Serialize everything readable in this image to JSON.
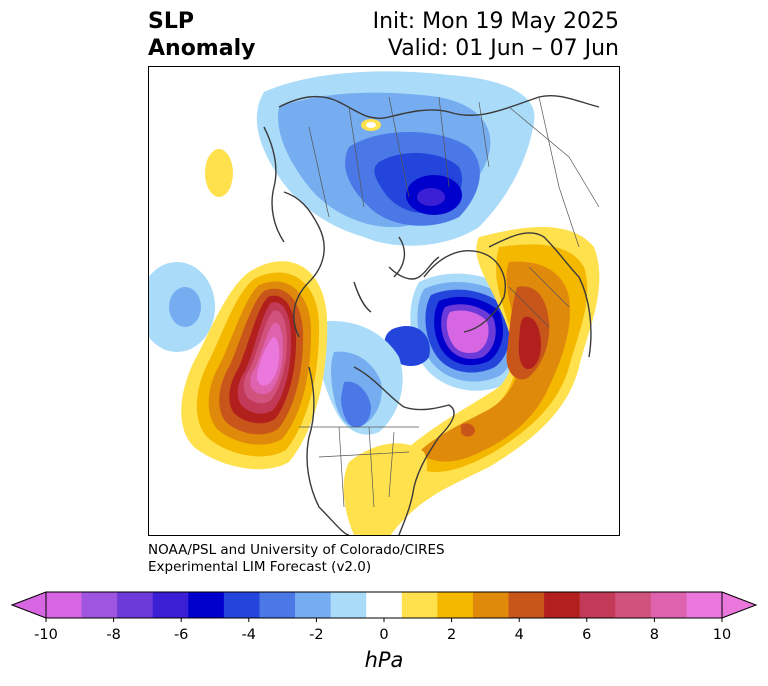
{
  "header": {
    "title_line1": "SLP",
    "title_line2": "Anomaly",
    "init_text": "Init: Mon 19 May 2025",
    "valid_text": "Valid: 01 Jun – 07 Jun"
  },
  "credit": {
    "line1": "NOAA/PSL and University of Colorado/CIRES",
    "line2": "Experimental LIM Forecast (v2.0)"
  },
  "colorbar": {
    "units": "hPa",
    "tick_labels": [
      "-10",
      "-8",
      "-6",
      "-4",
      "-2",
      "0",
      "2",
      "4",
      "6",
      "8",
      "10"
    ],
    "colors": [
      "#d766e3",
      "#9f55e0",
      "#6b3ad9",
      "#3a1fd4",
      "#0000cc",
      "#2345dc",
      "#4a78e6",
      "#76adf0",
      "#aadcfa",
      "#ffffff",
      "#ffe14d",
      "#f4b800",
      "#e08a0c",
      "#c85519",
      "#b2201e",
      "#c23a57",
      "#d2527e",
      "#de62ae",
      "#ea78dc"
    ],
    "extend_min_color": "#d766e3",
    "extend_max_color": "#ea78dc"
  }
}
